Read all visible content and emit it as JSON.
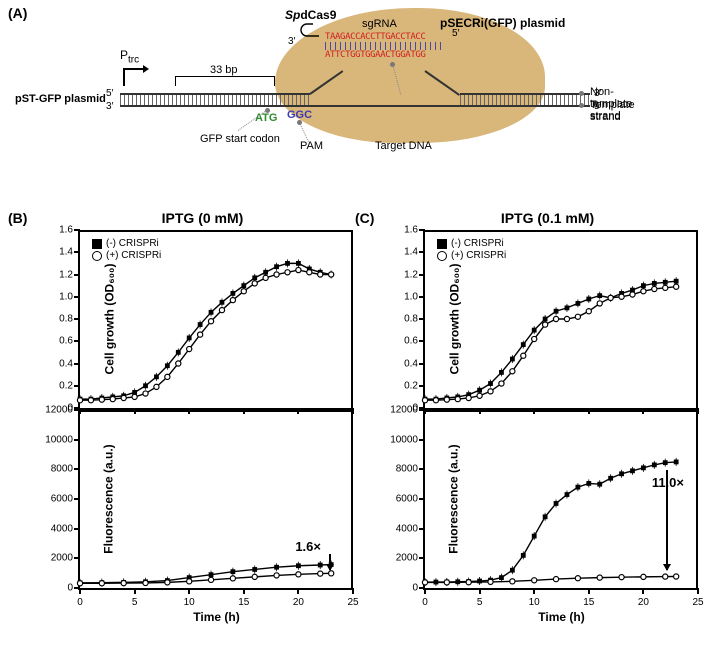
{
  "panelA": {
    "label": "(A)",
    "promoter": "P",
    "promoter_sub": "trc",
    "spdcas9_prefix_italic": "Sp",
    "spdcas9_rest": "dCas9",
    "pSECRi": "pSECRi(GFP) plasmid",
    "sgRNA": "sgRNA",
    "distance": "33 bp",
    "pST": "pST-GFP plasmid",
    "ends": {
      "five": "5′",
      "three": "3′"
    },
    "atg": "ATG",
    "pam": "GGC",
    "seq_top": "TAAGACCACCTTGACCTACC",
    "seq_bot": "ATTCTGGTGGAACTGGATGG",
    "callouts": {
      "gfp": "GFP start codon",
      "pam": "PAM",
      "target": "Target DNA",
      "nts": "Non-template strand",
      "ts": "Template strand"
    }
  },
  "panelB": {
    "label": "(B)",
    "title": "IPTG (0 mM)",
    "growth": {
      "ylabel": "Cell growth (OD₆₀₀)",
      "ylim": [
        0,
        1.6
      ],
      "yticks": [
        0,
        0.2,
        0.4,
        0.6,
        0.8,
        1.0,
        1.2,
        1.4,
        1.6
      ],
      "legend": {
        "minus": "(-) CRISPRi",
        "plus": "(+) CRISPRi",
        "pos": "topleft"
      },
      "series_minus": [
        [
          0,
          0.08
        ],
        [
          1,
          0.08
        ],
        [
          2,
          0.09
        ],
        [
          3,
          0.1
        ],
        [
          4,
          0.11
        ],
        [
          5,
          0.14
        ],
        [
          6,
          0.2
        ],
        [
          7,
          0.28
        ],
        [
          8,
          0.38
        ],
        [
          9,
          0.5
        ],
        [
          10,
          0.63
        ],
        [
          11,
          0.75
        ],
        [
          12,
          0.86
        ],
        [
          13,
          0.95
        ],
        [
          14,
          1.03
        ],
        [
          15,
          1.1
        ],
        [
          16,
          1.17
        ],
        [
          17,
          1.22
        ],
        [
          18,
          1.27
        ],
        [
          19,
          1.3
        ],
        [
          20,
          1.3
        ],
        [
          21,
          1.25
        ],
        [
          22,
          1.22
        ],
        [
          23,
          1.2
        ]
      ],
      "series_plus": [
        [
          0,
          0.07
        ],
        [
          1,
          0.07
        ],
        [
          2,
          0.075
        ],
        [
          3,
          0.08
        ],
        [
          4,
          0.09
        ],
        [
          5,
          0.1
        ],
        [
          6,
          0.13
        ],
        [
          7,
          0.19
        ],
        [
          8,
          0.28
        ],
        [
          9,
          0.4
        ],
        [
          10,
          0.53
        ],
        [
          11,
          0.66
        ],
        [
          12,
          0.78
        ],
        [
          13,
          0.88
        ],
        [
          14,
          0.97
        ],
        [
          15,
          1.05
        ],
        [
          16,
          1.12
        ],
        [
          17,
          1.17
        ],
        [
          18,
          1.2
        ],
        [
          19,
          1.22
        ],
        [
          20,
          1.24
        ],
        [
          21,
          1.22
        ],
        [
          22,
          1.2
        ],
        [
          23,
          1.2
        ]
      ]
    },
    "fluor": {
      "ylabel": "Fluorescence (a.u.)",
      "ylim": [
        0,
        12000
      ],
      "yticks": [
        0,
        2000,
        4000,
        6000,
        8000,
        10000,
        12000
      ],
      "fold": "1.6×",
      "series_minus": [
        [
          0,
          350
        ],
        [
          2,
          360
        ],
        [
          4,
          380
        ],
        [
          6,
          420
        ],
        [
          8,
          500
        ],
        [
          10,
          700
        ],
        [
          12,
          900
        ],
        [
          14,
          1100
        ],
        [
          16,
          1250
        ],
        [
          18,
          1400
        ],
        [
          20,
          1500
        ],
        [
          22,
          1550
        ],
        [
          23,
          1580
        ]
      ],
      "series_plus": [
        [
          0,
          320
        ],
        [
          2,
          320
        ],
        [
          4,
          330
        ],
        [
          6,
          340
        ],
        [
          8,
          380
        ],
        [
          10,
          450
        ],
        [
          12,
          550
        ],
        [
          14,
          650
        ],
        [
          16,
          750
        ],
        [
          18,
          850
        ],
        [
          20,
          920
        ],
        [
          22,
          970
        ],
        [
          23,
          990
        ]
      ]
    },
    "xlabel": "Time (h)",
    "xlim": [
      0,
      25
    ],
    "xticks": [
      0,
      5,
      10,
      15,
      20,
      25
    ]
  },
  "panelC": {
    "label": "(C)",
    "title": "IPTG (0.1 mM)",
    "growth": {
      "ylabel": "Cell growth (OD₆₀₀)",
      "ylim": [
        0,
        1.6
      ],
      "yticks": [
        0,
        0.2,
        0.4,
        0.6,
        0.8,
        1.0,
        1.2,
        1.4,
        1.6
      ],
      "legend": {
        "minus": "(-) CRISPRi",
        "plus": "(+) CRISPRi",
        "pos": "topleft"
      },
      "series_minus": [
        [
          0,
          0.08
        ],
        [
          1,
          0.08
        ],
        [
          2,
          0.09
        ],
        [
          3,
          0.1
        ],
        [
          4,
          0.12
        ],
        [
          5,
          0.16
        ],
        [
          6,
          0.22
        ],
        [
          7,
          0.32
        ],
        [
          8,
          0.44
        ],
        [
          9,
          0.57
        ],
        [
          10,
          0.7
        ],
        [
          11,
          0.8
        ],
        [
          12,
          0.87
        ],
        [
          13,
          0.9
        ],
        [
          14,
          0.94
        ],
        [
          15,
          0.98
        ],
        [
          16,
          1.01
        ],
        [
          17,
          0.99
        ],
        [
          18,
          1.03
        ],
        [
          19,
          1.06
        ],
        [
          20,
          1.1
        ],
        [
          21,
          1.12
        ],
        [
          22,
          1.13
        ],
        [
          23,
          1.14
        ]
      ],
      "series_plus": [
        [
          0,
          0.07
        ],
        [
          1,
          0.07
        ],
        [
          2,
          0.075
        ],
        [
          3,
          0.08
        ],
        [
          4,
          0.09
        ],
        [
          5,
          0.11
        ],
        [
          6,
          0.15
        ],
        [
          7,
          0.22
        ],
        [
          8,
          0.33
        ],
        [
          9,
          0.47
        ],
        [
          10,
          0.62
        ],
        [
          11,
          0.75
        ],
        [
          12,
          0.8
        ],
        [
          13,
          0.8
        ],
        [
          14,
          0.82
        ],
        [
          15,
          0.87
        ],
        [
          16,
          0.94
        ],
        [
          17,
          0.99
        ],
        [
          18,
          1.0
        ],
        [
          19,
          1.02
        ],
        [
          20,
          1.05
        ],
        [
          21,
          1.07
        ],
        [
          22,
          1.08
        ],
        [
          23,
          1.09
        ]
      ]
    },
    "fluor": {
      "ylabel": "Fluorescence (a.u.)",
      "ylim": [
        0,
        12000
      ],
      "yticks": [
        0,
        2000,
        4000,
        6000,
        8000,
        10000,
        12000
      ],
      "fold": "11.0×",
      "series_minus": [
        [
          0,
          400
        ],
        [
          1,
          400
        ],
        [
          2,
          410
        ],
        [
          3,
          420
        ],
        [
          4,
          440
        ],
        [
          5,
          470
        ],
        [
          6,
          530
        ],
        [
          7,
          700
        ],
        [
          8,
          1200
        ],
        [
          9,
          2200
        ],
        [
          10,
          3500
        ],
        [
          11,
          4800
        ],
        [
          12,
          5700
        ],
        [
          13,
          6300
        ],
        [
          14,
          6800
        ],
        [
          15,
          7050
        ],
        [
          16,
          7000
        ],
        [
          17,
          7400
        ],
        [
          18,
          7700
        ],
        [
          19,
          7900
        ],
        [
          20,
          8100
        ],
        [
          21,
          8300
        ],
        [
          22,
          8450
        ],
        [
          23,
          8500
        ]
      ],
      "series_plus": [
        [
          0,
          380
        ],
        [
          2,
          380
        ],
        [
          4,
          390
        ],
        [
          6,
          410
        ],
        [
          8,
          450
        ],
        [
          10,
          520
        ],
        [
          12,
          600
        ],
        [
          14,
          660
        ],
        [
          16,
          700
        ],
        [
          18,
          730
        ],
        [
          20,
          750
        ],
        [
          22,
          770
        ],
        [
          23,
          775
        ]
      ]
    },
    "xlabel": "Time (h)",
    "xlim": [
      0,
      25
    ],
    "xticks": [
      0,
      5,
      10,
      15,
      20,
      25
    ]
  },
  "style": {
    "colors": {
      "bg": "#ffffff",
      "axis": "#000000",
      "blob": "#d9b77a",
      "seq": "#d02020",
      "atg": "#2e8b2e",
      "pam": "#3a3ab5",
      "tick_pair": "#4a4aa5"
    },
    "marker_filled": {
      "shape": "square",
      "size": 5,
      "fill": "#000000"
    },
    "marker_open": {
      "shape": "circle",
      "size": 5,
      "stroke": "#000000",
      "fill": "#ffffff"
    },
    "line_width": 1.5,
    "font_label_pt": 12,
    "font_tick_pt": 10
  }
}
